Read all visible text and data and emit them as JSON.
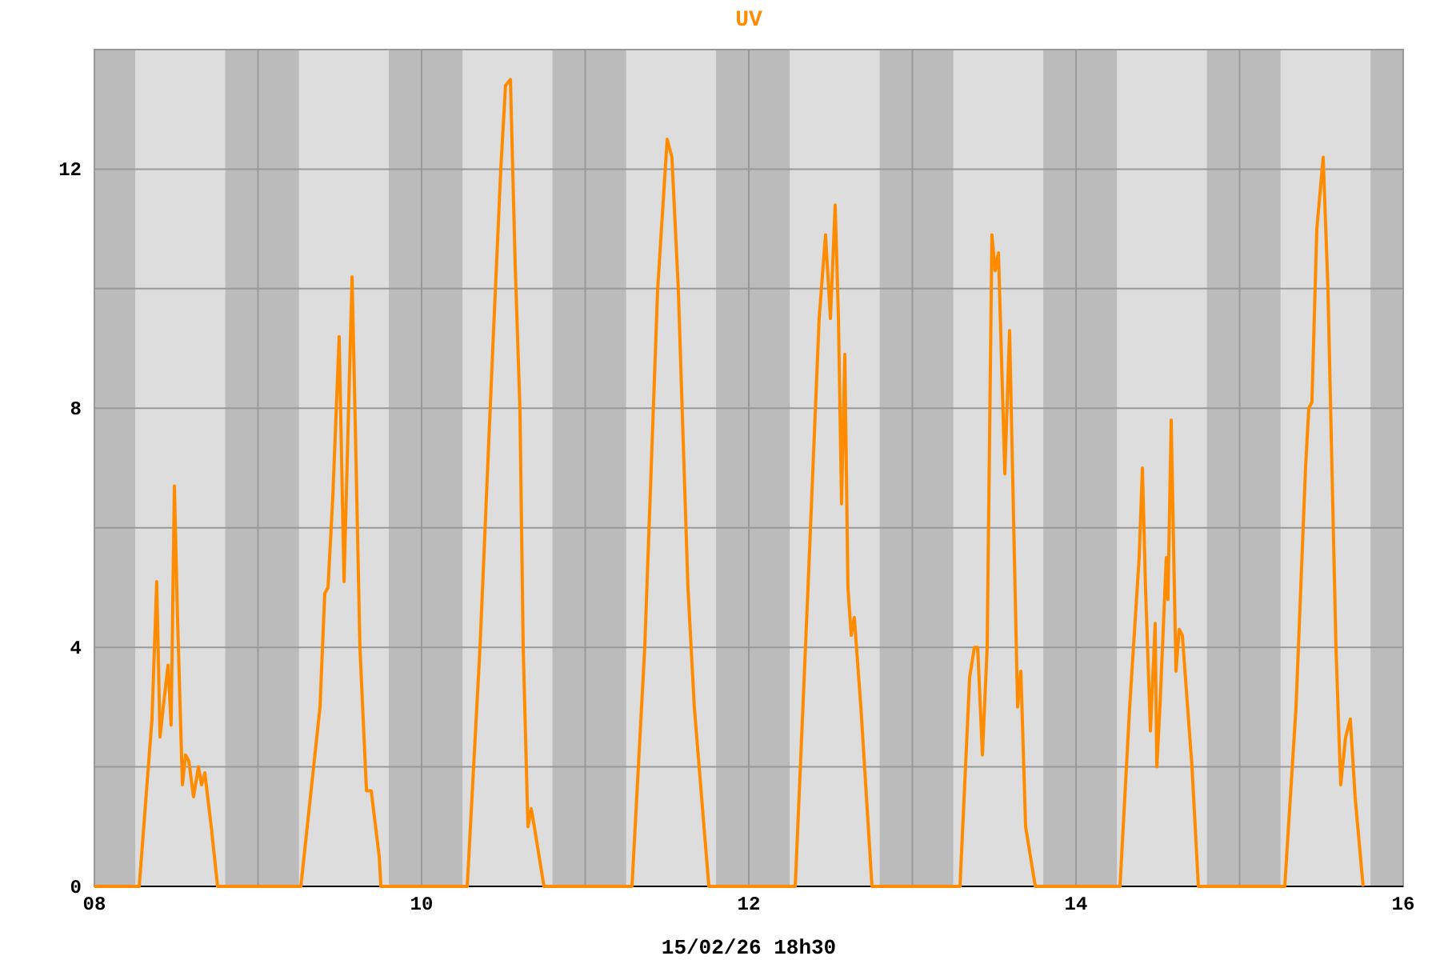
{
  "chart_data": {
    "type": "line",
    "title": "UV",
    "xlabel": "15/02/26 18h30",
    "xlim": [
      8,
      16
    ],
    "xticks": [
      {
        "value": 8,
        "label": "08"
      },
      {
        "value": 9,
        "label": null
      },
      {
        "value": 10,
        "label": "10"
      },
      {
        "value": 11,
        "label": null
      },
      {
        "value": 12,
        "label": "12"
      },
      {
        "value": 13,
        "label": null
      },
      {
        "value": 14,
        "label": "14"
      },
      {
        "value": 15,
        "label": null
      },
      {
        "value": 16,
        "label": "16"
      }
    ],
    "ylim": [
      0,
      14
    ],
    "yticks": [
      0,
      {
        "value": 2,
        "label": null
      },
      4,
      {
        "value": 6,
        "label": null
      },
      8,
      {
        "value": 10,
        "label": null
      },
      12
    ],
    "grid": true,
    "bands": [
      {
        "axis": "x",
        "from": 8,
        "to": 8.25,
        "color": "#bbbbbb"
      },
      {
        "axis": "x",
        "from": 8.8,
        "to": 9.25,
        "color": "#bbbbbb"
      },
      {
        "axis": "x",
        "from": 9.8,
        "to": 10.25,
        "color": "#bbbbbb"
      },
      {
        "axis": "x",
        "from": 10.8,
        "to": 11.25,
        "color": "#bbbbbb"
      },
      {
        "axis": "x",
        "from": 11.8,
        "to": 12.25,
        "color": "#bbbbbb"
      },
      {
        "axis": "x",
        "from": 12.8,
        "to": 13.25,
        "color": "#bbbbbb"
      },
      {
        "axis": "x",
        "from": 13.8,
        "to": 14.25,
        "color": "#bbbbbb"
      },
      {
        "axis": "x",
        "from": 14.8,
        "to": 15.25,
        "color": "#bbbbbb"
      },
      {
        "axis": "x",
        "from": 15.8,
        "to": 16,
        "color": "#bbbbbb"
      }
    ],
    "series": [
      {
        "color": "#ff8c00",
        "x": [
          8,
          8.274,
          8.352,
          8.381,
          8.401,
          8.421,
          8.45,
          8.469,
          8.489,
          8.508,
          8.538,
          8.557,
          8.577,
          8.606,
          8.636,
          8.655,
          8.675,
          8.714,
          8.753,
          9.262,
          9.379,
          9.408,
          9.428,
          9.457,
          9.496,
          9.526,
          9.575,
          9.594,
          9.623,
          9.663,
          9.692,
          9.741,
          9.751,
          10.279,
          10.357,
          10.435,
          10.484,
          10.513,
          10.543,
          10.572,
          10.601,
          10.621,
          10.65,
          10.67,
          10.689,
          10.748,
          11.286,
          11.364,
          11.443,
          11.501,
          11.53,
          11.569,
          11.628,
          11.667,
          11.726,
          11.756,
          12.284,
          12.362,
          12.43,
          12.469,
          12.499,
          12.528,
          12.548,
          12.567,
          12.587,
          12.606,
          12.626,
          12.645,
          12.685,
          12.753,
          13.291,
          13.35,
          13.379,
          13.399,
          13.428,
          13.457,
          13.486,
          13.506,
          13.526,
          13.565,
          13.594,
          13.643,
          13.663,
          13.692,
          13.751,
          14.269,
          14.328,
          14.386,
          14.406,
          14.425,
          14.455,
          14.484,
          14.494,
          14.513,
          14.552,
          14.562,
          14.582,
          14.611,
          14.631,
          14.65,
          14.709,
          14.748,
          15.276,
          15.345,
          15.403,
          15.423,
          15.442,
          15.472,
          15.511,
          15.54,
          15.589,
          15.618,
          15.648,
          15.677,
          15.706,
          15.755
        ],
        "values": [
          0,
          0,
          2.8,
          5.1,
          2.5,
          3,
          3.7,
          2.7,
          6.7,
          4.5,
          1.7,
          2.2,
          2.1,
          1.5,
          2,
          1.7,
          1.9,
          1,
          0,
          0,
          3,
          4.9,
          5,
          6.5,
          9.2,
          5.1,
          10.2,
          7.8,
          4,
          1.6,
          1.6,
          0.5,
          0,
          0,
          4,
          9,
          12,
          13.4,
          13.5,
          10.4,
          8,
          4,
          1,
          1.3,
          1,
          0,
          0,
          4,
          10,
          12.5,
          12.2,
          10,
          5,
          3,
          1,
          0,
          0,
          5,
          9.5,
          10.9,
          9.5,
          11.4,
          9.5,
          6.4,
          8.9,
          5,
          4.2,
          4.5,
          3,
          0,
          0,
          3.5,
          4,
          4,
          2.2,
          4,
          10.9,
          10.3,
          10.6,
          6.9,
          9.3,
          3,
          3.6,
          1,
          0,
          0,
          3,
          5.5,
          7,
          5,
          2.6,
          4.4,
          2,
          3,
          5.5,
          4.8,
          7.8,
          3.6,
          4.3,
          4.2,
          2,
          0,
          0,
          3,
          7,
          8,
          8.1,
          11,
          12.2,
          10,
          4,
          1.7,
          2.5,
          2.8,
          1.5,
          0
        ]
      }
    ]
  }
}
